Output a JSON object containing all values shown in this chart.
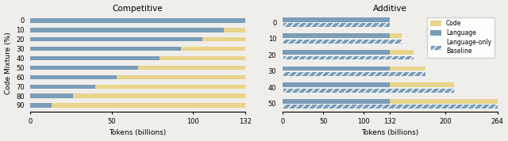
{
  "competitive": {
    "title": "Competitive",
    "xlabel": "Tokens (billions)",
    "ylabel": "Code Mixture (%)",
    "total": 132,
    "categories": [
      0,
      10,
      20,
      30,
      40,
      50,
      60,
      70,
      80,
      90
    ],
    "language_vals": [
      132,
      118.8,
      105.6,
      92.4,
      79.2,
      66.0,
      52.8,
      39.6,
      26.4,
      13.2
    ],
    "code_vals": [
      0,
      13.2,
      26.4,
      39.6,
      52.8,
      66.0,
      79.2,
      92.4,
      105.6,
      118.8
    ],
    "xlim": [
      0,
      132
    ],
    "xticks": [
      0,
      50,
      100,
      132
    ]
  },
  "additive": {
    "title": "Additive",
    "xlabel": "Tokens (billions)",
    "categories": [
      0,
      10,
      20,
      30,
      40,
      50
    ],
    "language_vals": [
      132,
      132,
      132,
      132,
      132,
      132
    ],
    "code_vals": [
      0,
      14.67,
      29.33,
      44.0,
      79.2,
      132.0
    ],
    "baseline_vals": [
      132,
      146.67,
      161.33,
      176.0,
      211.2,
      264.0
    ],
    "xlim": [
      0,
      264
    ],
    "xticks": [
      0,
      50,
      100,
      132,
      200,
      264
    ]
  },
  "colors": {
    "code": "#e8d48b",
    "language": "#7a9db8",
    "background": "#f0eeea"
  },
  "legend": {
    "code_label": "Code",
    "language_label": "Language",
    "baseline_label": "Language-only\nBaseline"
  }
}
